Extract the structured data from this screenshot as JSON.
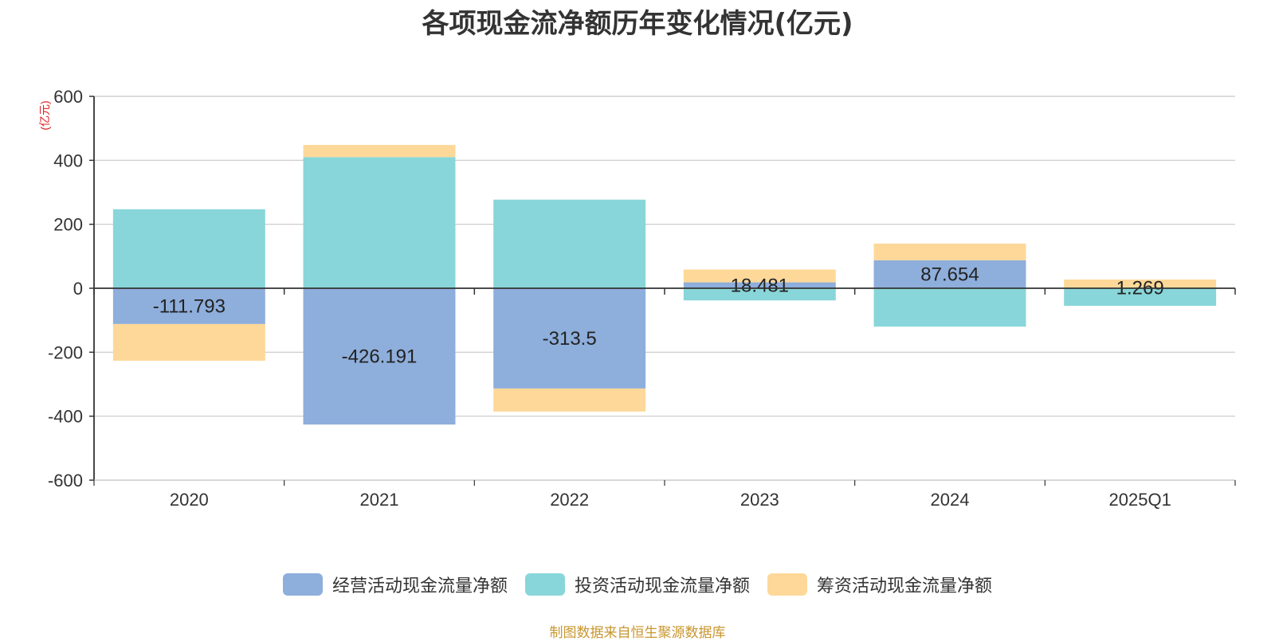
{
  "chart_data": {
    "type": "bar",
    "stacked": true,
    "title": "各项现金流净额历年变化情况(亿元)",
    "ylabel": "(亿元)",
    "categories": [
      "2020",
      "2021",
      "2022",
      "2023",
      "2024",
      "2025Q1"
    ],
    "ylim": [
      -600,
      600
    ],
    "yticks": [
      600,
      400,
      200,
      0,
      -200,
      -400,
      -600
    ],
    "grid": true,
    "legend_position": "bottom",
    "series": [
      {
        "name": "经营活动现金流量净额",
        "color": "#8eaedb",
        "values": [
          -111.793,
          -426.191,
          -313.5,
          18.481,
          87.654,
          1.269
        ],
        "labels": [
          "-111.793",
          "-426.191",
          "-313.5",
          "18.481",
          "87.654",
          "1.269"
        ]
      },
      {
        "name": "投资活动现金流量净额",
        "color": "#88d6d9",
        "values": [
          247,
          410,
          277,
          -38,
          -120,
          -55
        ]
      },
      {
        "name": "筹资活动现金流量净额",
        "color": "#fdd898",
        "values": [
          -115,
          38,
          -72,
          40,
          52,
          26
        ]
      }
    ]
  },
  "source_note": "制图数据来自恒生聚源数据库"
}
